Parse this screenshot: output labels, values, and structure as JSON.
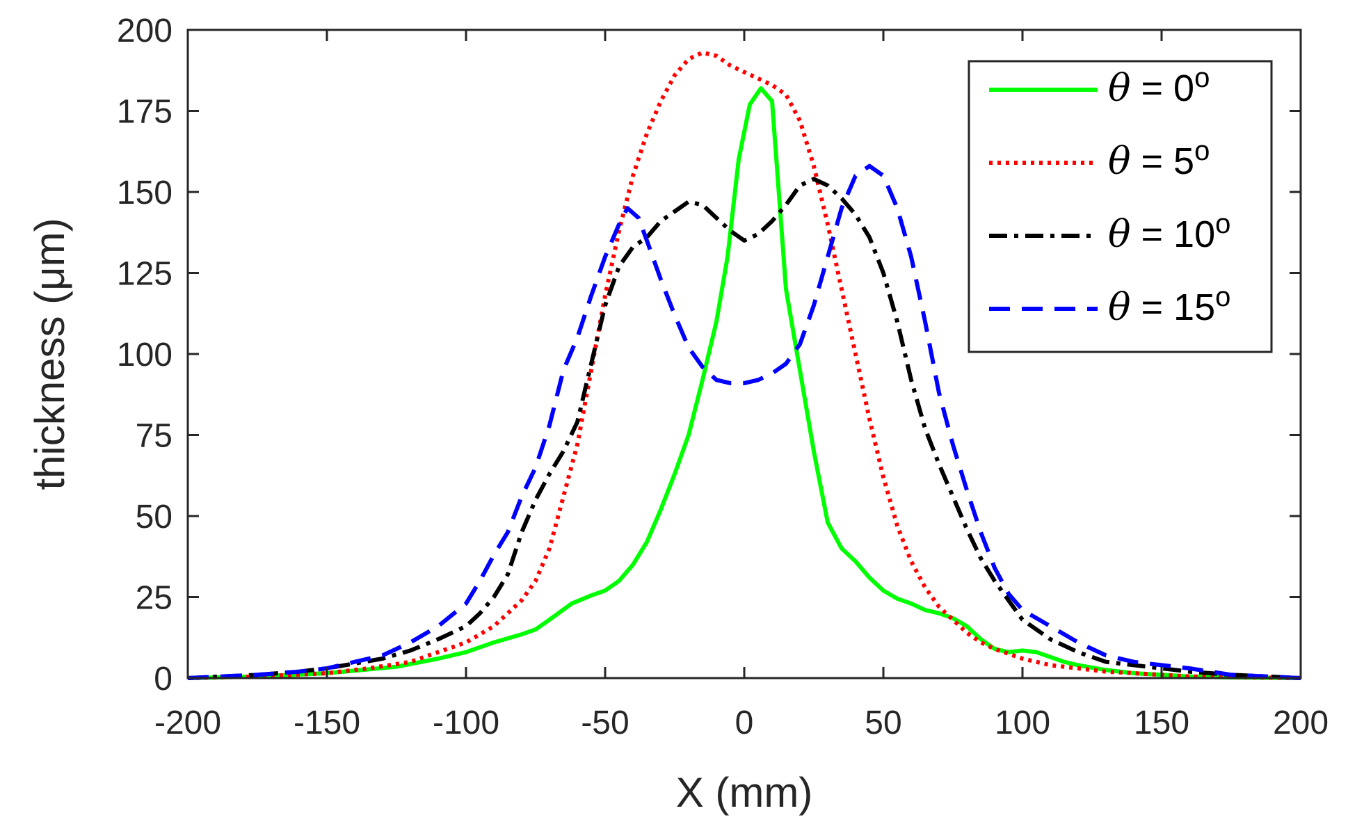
{
  "chart_data": {
    "type": "line",
    "title": "",
    "xlabel": "X (mm)",
    "ylabel": "thickness (μm)",
    "xlim": [
      -200,
      200
    ],
    "ylim": [
      0,
      200
    ],
    "xticks": [
      "-200",
      "-150",
      "-100",
      "-50",
      "0",
      "50",
      "100",
      "150",
      "200"
    ],
    "yticks": [
      "0",
      "25",
      "50",
      "75",
      "100",
      "125",
      "150",
      "175",
      "200"
    ],
    "grid": false,
    "legend_position": "top-right",
    "series": [
      {
        "name": "θ = 0°",
        "symbol": "θ",
        "label_rest": " = 0",
        "degree": "o",
        "color": "#00ff00",
        "style": "solid",
        "x": [
          -200,
          -175,
          -150,
          -125,
          -110,
          -100,
          -90,
          -80,
          -75,
          -70,
          -62,
          -55,
          -50,
          -45,
          -40,
          -35,
          -30,
          -25,
          -20,
          -15,
          -10,
          -6,
          -2,
          2,
          6,
          10,
          15,
          20,
          25,
          30,
          35,
          40,
          45,
          50,
          55,
          60,
          65,
          70,
          75,
          80,
          85,
          90,
          95,
          100,
          105,
          110,
          115,
          120,
          130,
          140,
          150,
          160,
          175,
          200
        ],
        "y": [
          0,
          0.5,
          1.5,
          3.5,
          6,
          8,
          11,
          13.5,
          15,
          18,
          23,
          25.5,
          27,
          30,
          35,
          42,
          52,
          63,
          75,
          92,
          110,
          130,
          160,
          177,
          182,
          178,
          120,
          95,
          70,
          48,
          40,
          36,
          31,
          27,
          24.5,
          23,
          21,
          20,
          18.5,
          16,
          12,
          9,
          8,
          8.5,
          8,
          6.5,
          5,
          4,
          2.5,
          1.5,
          1,
          0.5,
          0.2,
          0
        ]
      },
      {
        "name": "θ = 5°",
        "symbol": "θ",
        "label_rest": " = 5",
        "degree": "o",
        "color": "#ff0000",
        "style": "dotted",
        "x": [
          -200,
          -175,
          -150,
          -135,
          -120,
          -110,
          -100,
          -90,
          -80,
          -75,
          -70,
          -65,
          -60,
          -55,
          -50,
          -45,
          -40,
          -35,
          -30,
          -25,
          -20,
          -15,
          -10,
          -5,
          0,
          5,
          10,
          15,
          20,
          25,
          30,
          35,
          40,
          45,
          50,
          55,
          60,
          65,
          70,
          75,
          80,
          85,
          90,
          100,
          110,
          120,
          130,
          140,
          150,
          160,
          175,
          200
        ],
        "y": [
          0,
          0.5,
          1.5,
          3,
          5,
          8,
          11,
          16,
          24,
          30,
          40,
          56,
          72,
          95,
          118,
          138,
          155,
          168,
          178,
          186,
          191,
          193,
          192,
          189,
          187,
          185,
          183,
          180,
          172,
          158,
          140,
          120,
          100,
          80,
          62,
          47,
          36,
          28,
          22,
          18,
          14,
          11,
          9,
          6,
          4,
          3,
          2,
          1.5,
          1,
          0.5,
          0.3,
          0
        ]
      },
      {
        "name": "θ = 10°",
        "symbol": "θ",
        "label_rest": " = 10",
        "degree": "o",
        "color": "#000000",
        "style": "dashdot",
        "x": [
          -200,
          -175,
          -160,
          -150,
          -140,
          -130,
          -120,
          -110,
          -100,
          -95,
          -90,
          -85,
          -80,
          -75,
          -70,
          -65,
          -60,
          -55,
          -50,
          -45,
          -40,
          -35,
          -30,
          -25,
          -20,
          -15,
          -10,
          -5,
          0,
          5,
          10,
          15,
          20,
          25,
          30,
          35,
          40,
          45,
          50,
          55,
          60,
          65,
          70,
          75,
          80,
          85,
          90,
          95,
          100,
          110,
          120,
          130,
          140,
          150,
          160,
          175,
          200
        ],
        "y": [
          0,
          1,
          2,
          3,
          4.5,
          6,
          8.5,
          12,
          16,
          20,
          25,
          32,
          45,
          55,
          63,
          70,
          79,
          97,
          115,
          127,
          133,
          136,
          141,
          144,
          147,
          146,
          142,
          138,
          135,
          137,
          141,
          146,
          152,
          154,
          152,
          148,
          143,
          136,
          125,
          110,
          92,
          77,
          66,
          56,
          46,
          37,
          30,
          24,
          18,
          12,
          8,
          5,
          4,
          3,
          2,
          1,
          0
        ]
      },
      {
        "name": "θ = 15°",
        "symbol": "θ",
        "label_rest": " = 15",
        "degree": "o",
        "color": "#0000ff",
        "style": "dashed",
        "x": [
          -200,
          -175,
          -160,
          -150,
          -140,
          -130,
          -120,
          -110,
          -100,
          -95,
          -90,
          -85,
          -80,
          -75,
          -70,
          -65,
          -60,
          -55,
          -50,
          -45,
          -42,
          -38,
          -35,
          -30,
          -25,
          -20,
          -15,
          -10,
          -5,
          0,
          5,
          10,
          15,
          20,
          25,
          30,
          35,
          40,
          45,
          50,
          55,
          60,
          65,
          70,
          75,
          80,
          85,
          90,
          95,
          100,
          110,
          120,
          130,
          140,
          150,
          160,
          175,
          200
        ],
        "y": [
          0,
          1,
          2,
          3,
          5,
          7,
          11,
          16,
          23,
          30,
          38,
          45,
          56,
          65,
          78,
          95,
          105,
          118,
          130,
          140,
          145,
          142,
          135,
          123,
          112,
          102,
          96,
          92,
          91,
          91,
          92,
          94,
          97,
          103,
          115,
          130,
          145,
          155,
          158,
          155,
          145,
          130,
          110,
          88,
          72,
          58,
          45,
          34,
          26,
          21,
          16,
          11,
          7,
          5,
          4,
          3,
          1,
          0
        ]
      }
    ]
  }
}
